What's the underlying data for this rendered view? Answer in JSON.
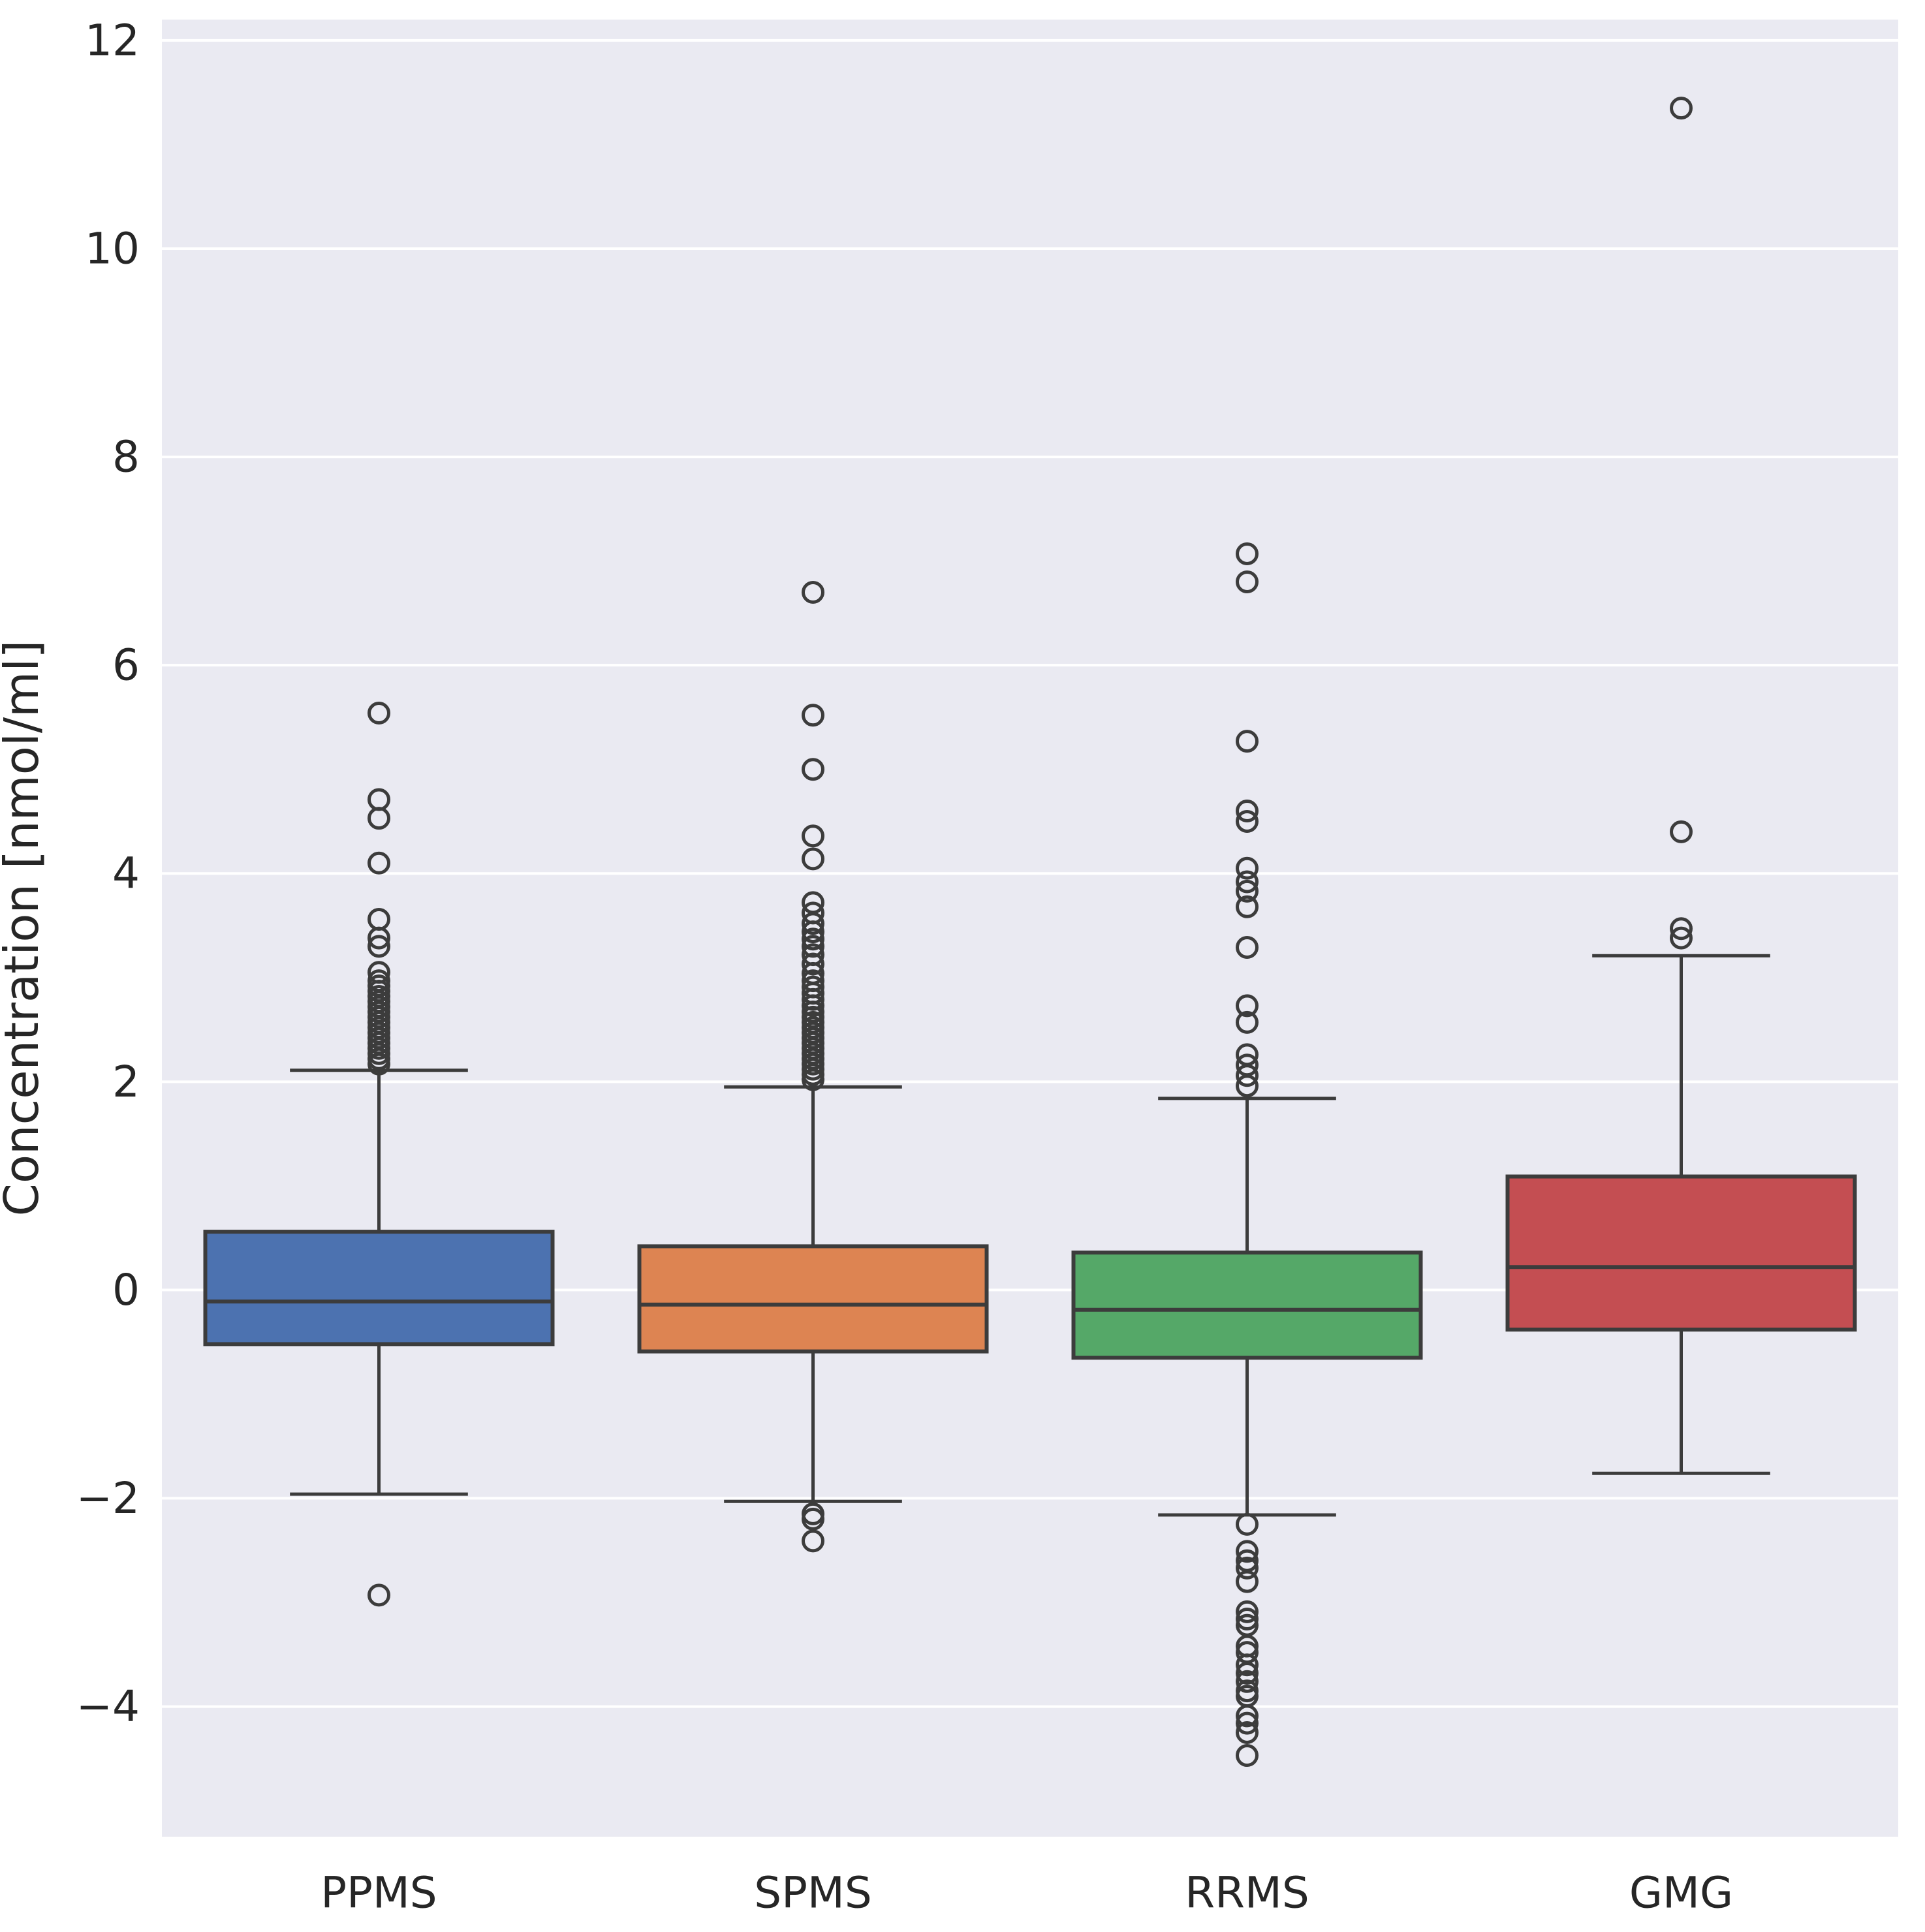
{
  "chart_data": {
    "type": "box",
    "title": "",
    "xlabel": "",
    "ylabel": "Concentration [nmol/ml]",
    "ylim": [
      -5.25,
      12.2
    ],
    "yticks": [
      12,
      10,
      8,
      6,
      4,
      2,
      0,
      -2,
      -4
    ],
    "ytick_labels": [
      "12",
      "10",
      "8",
      "6",
      "4",
      "2",
      "0",
      "−2",
      "−4"
    ],
    "categories": [
      "PPMS",
      "SPMS",
      "RRMS",
      "GMG"
    ],
    "grid": true,
    "legend": "none",
    "colors": {
      "axes_background": "#EAEAF2",
      "figure_background": "#FFFFFF",
      "grid_color": "#FFFFFF",
      "line_color": "#3C3C3C",
      "text_color": "#262626"
    },
    "series": [
      {
        "name": "PPMS",
        "color": "#4C72B0",
        "q1": -0.52,
        "median": -0.11,
        "q3": 0.56,
        "whisker_low": -1.96,
        "whisker_high": 2.11,
        "outliers": [
          5.54,
          4.71,
          4.53,
          4.1,
          3.56,
          3.38,
          3.3,
          3.05,
          2.97,
          2.92,
          2.87,
          2.82,
          2.77,
          2.72,
          2.67,
          2.62,
          2.57,
          2.52,
          2.47,
          2.42,
          2.37,
          2.32,
          2.27,
          2.22,
          2.17,
          -2.93
        ]
      },
      {
        "name": "SPMS",
        "color": "#DD8452",
        "q1": -0.59,
        "median": -0.14,
        "q3": 0.42,
        "whisker_low": -2.03,
        "whisker_high": 1.95,
        "outliers": [
          6.7,
          5.52,
          5.0,
          4.36,
          4.14,
          3.72,
          3.62,
          3.52,
          3.44,
          3.37,
          3.3,
          3.22,
          3.13,
          3.04,
          2.97,
          2.91,
          2.85,
          2.79,
          2.73,
          2.67,
          2.62,
          2.57,
          2.52,
          2.47,
          2.42,
          2.37,
          2.32,
          2.27,
          2.22,
          2.17,
          2.12,
          2.07,
          2.02,
          -2.15,
          -2.2,
          -2.41
        ]
      },
      {
        "name": "RRMS",
        "color": "#55A868",
        "q1": -0.65,
        "median": -0.19,
        "q3": 0.36,
        "whisker_low": -2.16,
        "whisker_high": 1.84,
        "outliers": [
          7.07,
          6.8,
          5.27,
          4.6,
          4.5,
          4.05,
          3.92,
          3.83,
          3.68,
          3.29,
          2.73,
          2.57,
          2.26,
          2.16,
          2.06,
          1.96,
          -2.25,
          -2.51,
          -2.6,
          -2.67,
          -2.8,
          -3.09,
          -3.16,
          -3.22,
          -3.42,
          -3.48,
          -3.6,
          -3.68,
          -3.76,
          -3.85,
          -3.9,
          -4.09,
          -4.16,
          -4.25,
          -4.47
        ]
      },
      {
        "name": "GMG",
        "color": "#C44E52",
        "q1": -0.38,
        "median": 0.22,
        "q3": 1.09,
        "whisker_low": -1.76,
        "whisker_high": 3.21,
        "outliers": [
          3.38,
          3.47,
          4.4,
          11.35
        ]
      }
    ]
  }
}
